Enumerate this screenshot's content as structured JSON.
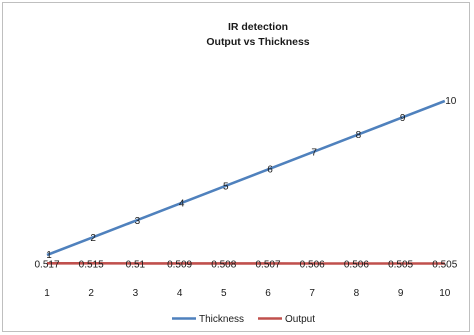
{
  "chart_data": {
    "type": "line",
    "title": "IR detection",
    "subtitle": "Output vs Thickness",
    "categories": [
      "1",
      "2",
      "3",
      "4",
      "5",
      "6",
      "7",
      "8",
      "9",
      "10"
    ],
    "series": [
      {
        "name": "Thickness",
        "color": "#4f81bd",
        "values": [
          1,
          2,
          3,
          4,
          5,
          6,
          7,
          8,
          9,
          10
        ],
        "labels": [
          "1",
          "2",
          "3",
          "4",
          "5",
          "6",
          "7",
          "8",
          "9",
          "10"
        ]
      },
      {
        "name": "Output",
        "color": "#c0504d",
        "values": [
          0.517,
          0.515,
          0.51,
          0.509,
          0.508,
          0.507,
          0.506,
          0.506,
          0.505,
          0.505
        ],
        "labels": [
          "0.517",
          "0.515",
          "0.51",
          "0.509",
          "0.508",
          "0.507",
          "0.506",
          "0.506",
          "0.505",
          "0.505"
        ]
      }
    ],
    "ylim": [
      0,
      12
    ],
    "grid": false,
    "legend_position": "bottom"
  }
}
